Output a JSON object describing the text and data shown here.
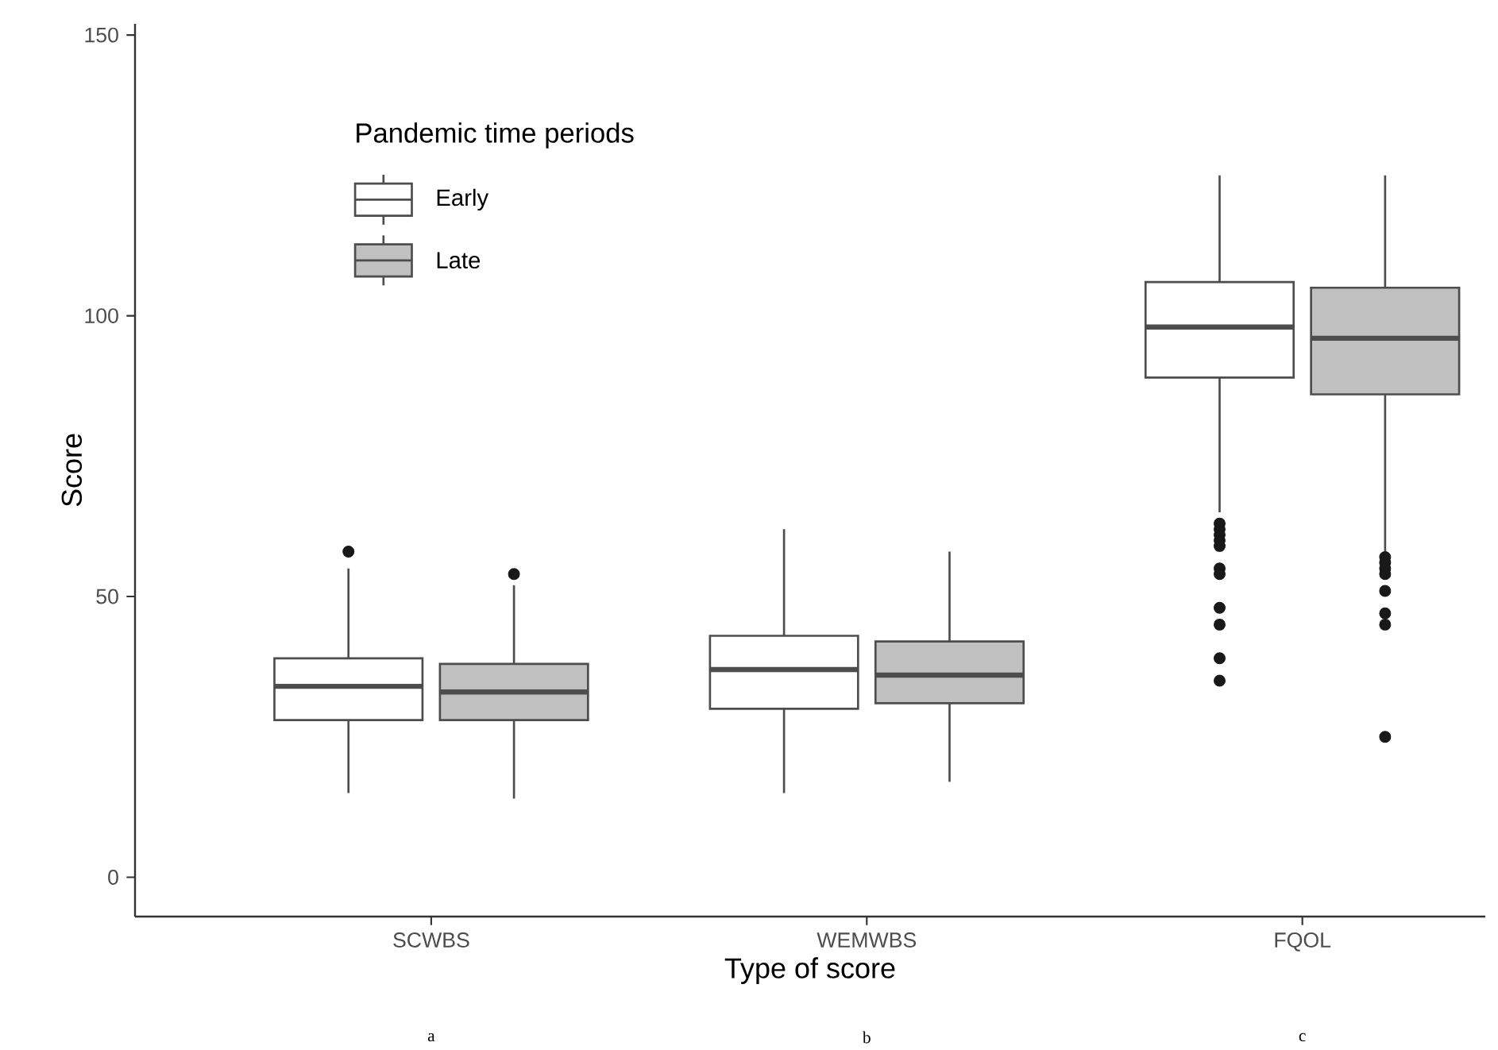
{
  "chart_data": {
    "type": "box",
    "xlabel": "Type of score",
    "ylabel": "Score",
    "legend_title": "Pandemic time periods",
    "categories": [
      "SCWBS",
      "WEMWBS",
      "FQOL"
    ],
    "ylim": [
      -7,
      152
    ],
    "yticks": [
      0,
      50,
      100,
      150
    ],
    "legend": "top left",
    "annotations": [
      "a",
      "b",
      "c"
    ],
    "series": [
      {
        "name": "Early",
        "color": "#ffffff",
        "boxes": [
          {
            "low": 15,
            "q1": 28,
            "median": 34,
            "q3": 39,
            "high": 55,
            "outliers": [
              58
            ]
          },
          {
            "low": 15,
            "q1": 30,
            "median": 37,
            "q3": 43,
            "high": 62
          },
          {
            "low": 65,
            "q1": 89,
            "median": 98,
            "q3": 106,
            "high": 125,
            "outliers": [
              63,
              62,
              61,
              60,
              59,
              55,
              54,
              48,
              45,
              39,
              35
            ]
          }
        ]
      },
      {
        "name": "Late",
        "color": "#c0c0c0",
        "boxes": [
          {
            "low": 14,
            "q1": 28,
            "median": 33,
            "q3": 38,
            "high": 52,
            "outliers": [
              54
            ]
          },
          {
            "low": 17,
            "q1": 31,
            "median": 36,
            "q3": 42,
            "high": 58
          },
          {
            "low": 58,
            "q1": 86,
            "median": 96,
            "q3": 105,
            "high": 125,
            "outliers": [
              57,
              56,
              55,
              54,
              51,
              47,
              45,
              25
            ]
          }
        ]
      }
    ]
  }
}
